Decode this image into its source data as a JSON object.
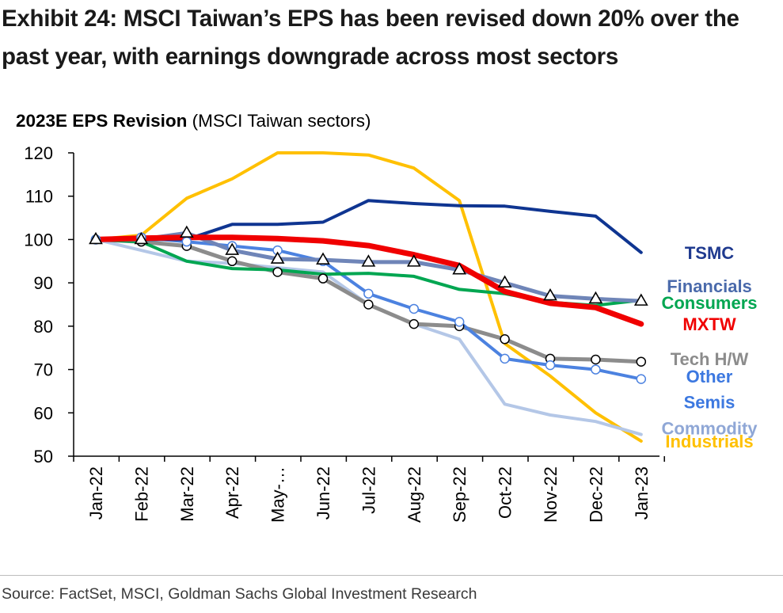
{
  "title": "Exhibit 24: MSCI Taiwan’s EPS has been revised down 20% over the past year, with earnings downgrade across most sectors",
  "subtitle_bold": "2023E EPS Revision",
  "subtitle_rest": " (MSCI Taiwan sectors)",
  "source": "Source: FactSet, MSCI, Goldman Sachs Global Investment Research",
  "chart_data": {
    "type": "line",
    "title": "2023E EPS Revision (MSCI Taiwan sectors)",
    "xlabel": "",
    "ylabel": "",
    "ylim": [
      50,
      120
    ],
    "yticks": [
      50,
      60,
      70,
      80,
      90,
      100,
      110,
      120
    ],
    "grid": false,
    "legend": "right-end labels",
    "categories": [
      "Jan-22",
      "Feb-22",
      "Mar-22",
      "Apr-22",
      "May-22",
      "Jun-22",
      "Jul-22",
      "Aug-22",
      "Sep-22",
      "Oct-22",
      "Nov-22",
      "Dec-22",
      "Jan-23"
    ],
    "category_labels": [
      "Jan-22",
      "Feb-22",
      "Mar-22",
      "Apr-22",
      "May-…",
      "Jun-22",
      "Jul-22",
      "Aug-22",
      "Sep-22",
      "Oct-22",
      "Nov-22",
      "Dec-22",
      "Jan-23"
    ],
    "series": [
      {
        "name": "Industrials",
        "color": "#FFC000",
        "width": 4,
        "marker": "none",
        "values": [
          100,
          101,
          109.5,
          114,
          120,
          120,
          119.5,
          116.5,
          109,
          76,
          68.5,
          60,
          53.5
        ]
      },
      {
        "name": "Commodity",
        "color": "#B4C7E7",
        "width": 4,
        "marker": "none",
        "values": [
          100,
          97.5,
          95,
          94.5,
          93.5,
          92.5,
          85,
          80.5,
          77,
          62,
          59.5,
          58,
          55
        ]
      },
      {
        "name": "Tech H/W",
        "color": "#8C8C8C",
        "width": 5,
        "marker": "circle",
        "values": [
          100,
          99.5,
          98.5,
          95,
          92.5,
          91,
          85,
          80.5,
          80,
          77,
          72.5,
          72.3,
          71.8
        ]
      },
      {
        "name": "Semis",
        "color": "#4C82E0",
        "width": 4,
        "marker": "circle-blue",
        "values": [
          100,
          100.5,
          99.5,
          98.5,
          97.5,
          95,
          87.5,
          84,
          81,
          72.5,
          71,
          70,
          67.8
        ]
      },
      {
        "name": "Consumers",
        "color": "#00A651",
        "width": 4,
        "marker": "none",
        "values": [
          100,
          99.5,
          95,
          93.3,
          93,
          92,
          92.2,
          91.5,
          88.5,
          87.5,
          85.5,
          84.8,
          86
        ]
      },
      {
        "name": "Financials",
        "color": "#6F85B8",
        "width": 5,
        "marker": "triangle",
        "values": [
          100,
          100,
          101.5,
          97.5,
          95.5,
          95.3,
          94.8,
          94.8,
          93,
          90,
          87,
          86.3,
          85.8
        ]
      },
      {
        "name": "TSMC",
        "color": "#0F3591",
        "width": 4,
        "marker": "none",
        "values": [
          100,
          100,
          100,
          103.5,
          103.5,
          104,
          109,
          108.3,
          107.8,
          107.7,
          106.5,
          105.4,
          97
        ]
      },
      {
        "name": "MXTW",
        "color": "#F00000",
        "width": 7,
        "marker": "none",
        "values": [
          100,
          100.3,
          100.5,
          100.5,
          100.2,
          99.7,
          98.6,
          96.5,
          94,
          88,
          85.3,
          84.3,
          80.5
        ]
      }
    ],
    "end_labels": [
      {
        "text": "TSMC",
        "color": "#1F3A8F",
        "value": 97
      },
      {
        "text": "Financials",
        "color": "#4A6AAB",
        "value": 89.3
      },
      {
        "text": "Consumers",
        "color": "#00A651",
        "value": 85.5
      },
      {
        "text": "MXTW",
        "color": "#F00000",
        "value": 80.5
      },
      {
        "text": "Tech H/W",
        "color": "#8C8C8C",
        "value": 72.5
      },
      {
        "text": "Other",
        "color": "#3C78E0",
        "value": 68.5
      },
      {
        "text": "Semis",
        "color": "#3C78E0",
        "value": 62.5
      },
      {
        "text": "Commodity",
        "color": "#8FA7D6",
        "value": 56.5
      },
      {
        "text": "Industrials",
        "color": "#FFC000",
        "value": 53.5
      }
    ]
  }
}
